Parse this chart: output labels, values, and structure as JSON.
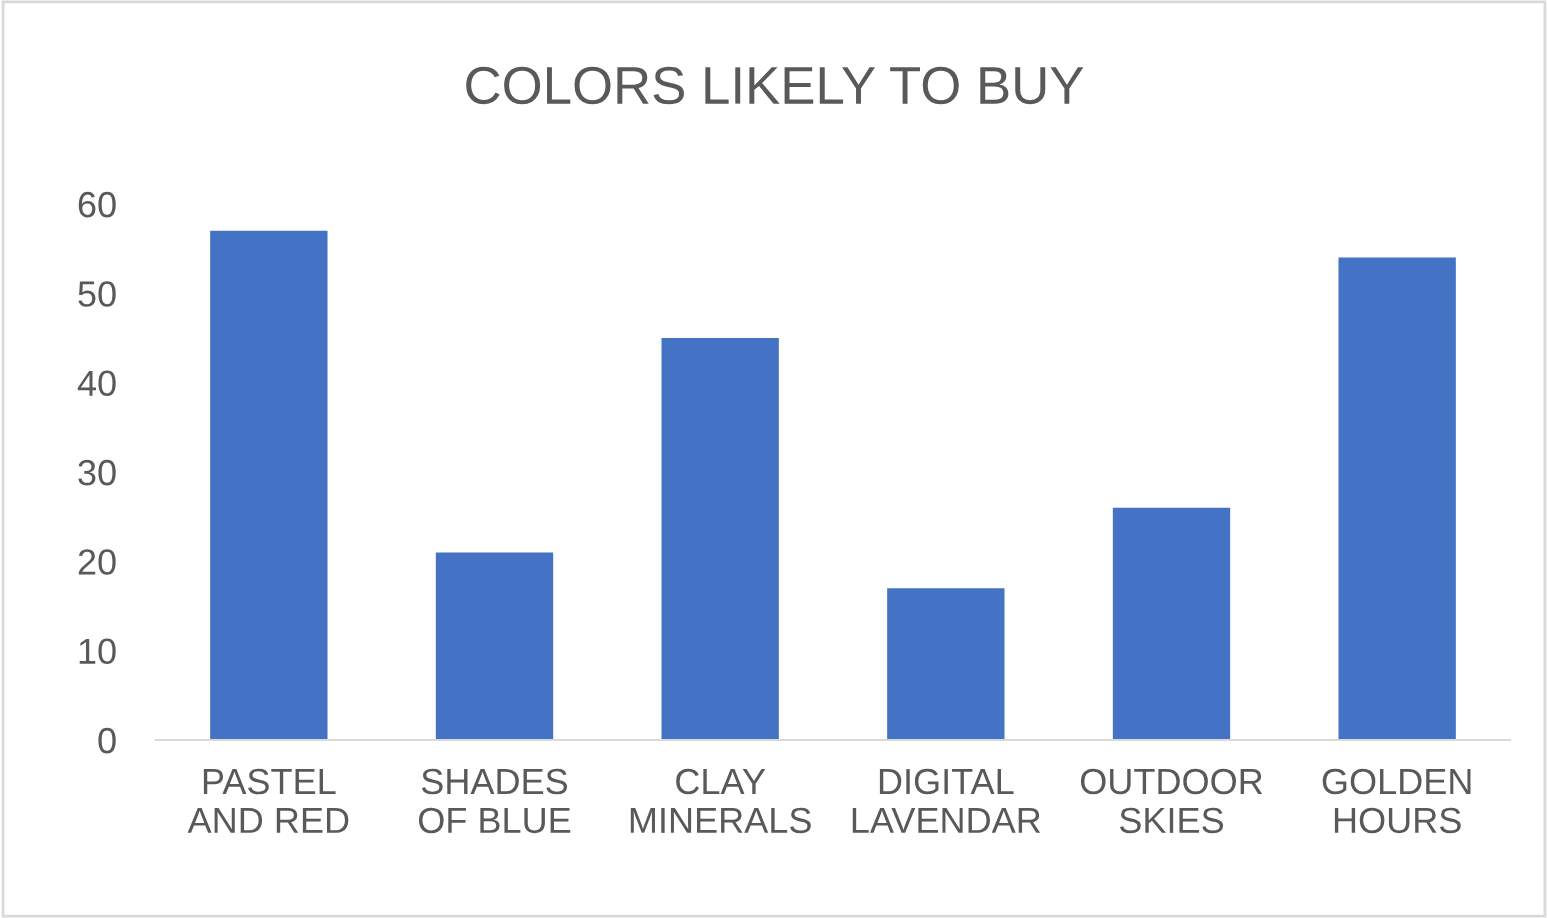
{
  "chart_data": {
    "type": "bar",
    "title": "COLORS LIKELY TO BUY",
    "categories": [
      "PASTEL\nAND RED",
      "SHADES\nOF BLUE",
      "CLAY\nMINERALS",
      "DIGITAL\nLAVENDAR",
      "OUTDOOR\nSKIES",
      "GOLDEN\nHOURS"
    ],
    "values": [
      57,
      21,
      45,
      17,
      26,
      54
    ],
    "color": "#4472c4",
    "ylim": [
      0,
      60
    ],
    "yticks": [
      0,
      10,
      20,
      30,
      40,
      50,
      60
    ],
    "grid": false
  }
}
